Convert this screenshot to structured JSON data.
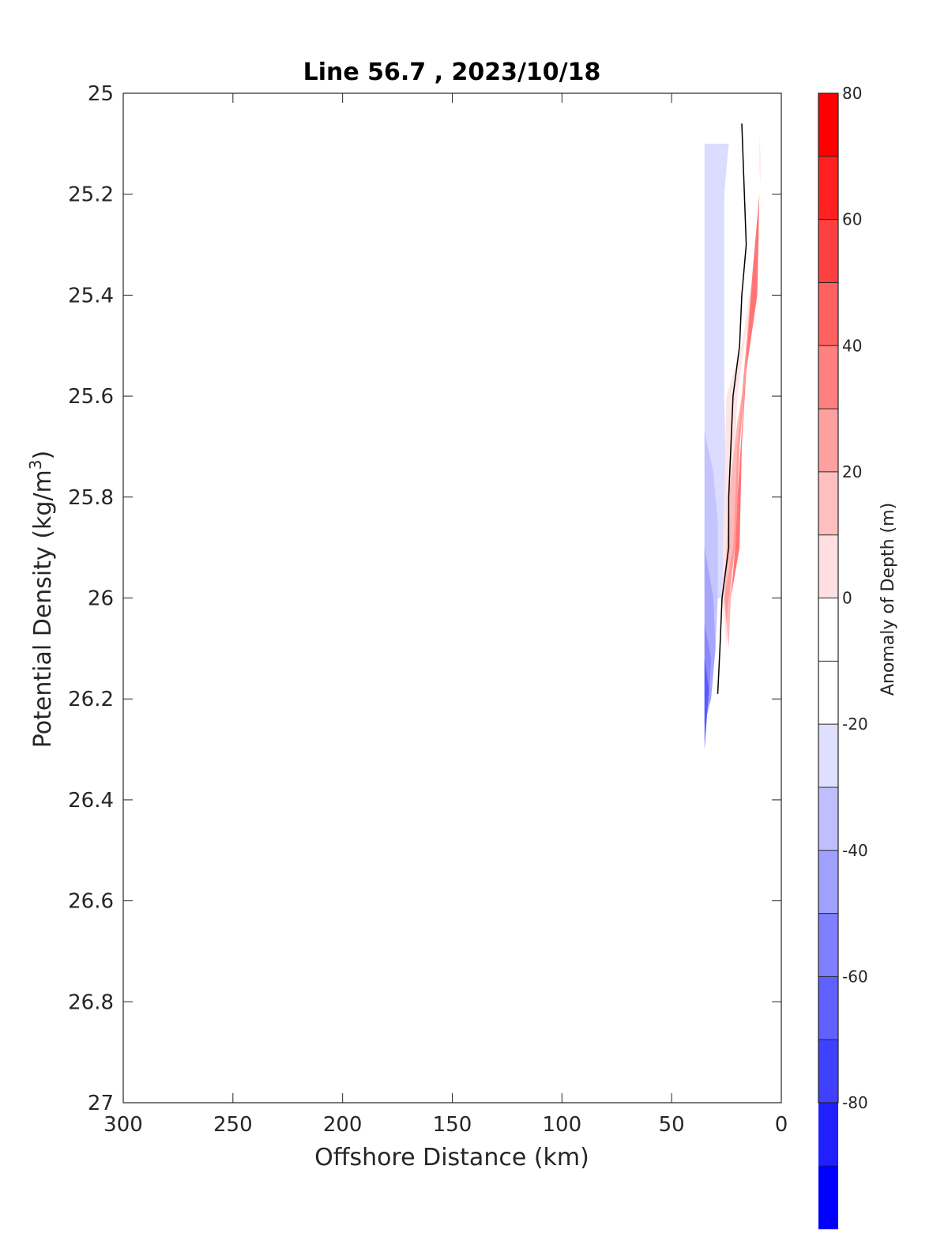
{
  "chart_data": {
    "type": "contour",
    "title": "Line 56.7 , 2023/10/18",
    "xlabel": "Offshore Distance (km)",
    "ylabel_main": "Potential Density (kg/m",
    "ylabel_sup": "3",
    "ylabel_end": ")",
    "xlim": [
      300,
      0
    ],
    "ylim": [
      25,
      27
    ],
    "x_reversed": true,
    "y_reversed": true,
    "x_ticks": [
      "300",
      "250",
      "200",
      "150",
      "100",
      "50",
      "0"
    ],
    "y_ticks": [
      "25",
      "25.2",
      "25.4",
      "25.6",
      "25.8",
      "26",
      "26.2",
      "26.4",
      "26.6",
      "26.8",
      "27"
    ],
    "grid": false,
    "colorbar": {
      "label": "Anomaly of Depth (m)",
      "range": [
        -80,
        80
      ],
      "step": 10,
      "ticks": [
        "80",
        "60",
        "40",
        "20",
        "0",
        "-20",
        "-40",
        "-60",
        "-80"
      ],
      "colors_top_to_bottom": [
        "#ff0000",
        "#ff2020",
        "#ff4040",
        "#ff6060",
        "#ff8080",
        "#ffa0a0",
        "#ffbfbf",
        "#ffdfdf",
        "#ffffff",
        "#ffffff",
        "#dfdfff",
        "#bfbfff",
        "#a0a0ff",
        "#8080ff",
        "#6060ff",
        "#4040ff",
        "#2020ff",
        "#0000ff"
      ]
    },
    "regions": [
      {
        "level": -15,
        "color": "#dcdcff",
        "points": [
          [
            35,
            25.1
          ],
          [
            24,
            25.1
          ],
          [
            26,
            25.2
          ],
          [
            26,
            25.6
          ],
          [
            25,
            25.8
          ],
          [
            26,
            26.0
          ],
          [
            35,
            26.0
          ]
        ]
      },
      {
        "level": -25,
        "color": "#c4c4ff",
        "points": [
          [
            35,
            25.67
          ],
          [
            31,
            25.75
          ],
          [
            29,
            25.85
          ],
          [
            29,
            26.0
          ],
          [
            30,
            26.1
          ],
          [
            35,
            26.2
          ]
        ]
      },
      {
        "level": -35,
        "color": "#a6a6ff",
        "points": [
          [
            35,
            25.9
          ],
          [
            31,
            26.0
          ],
          [
            30,
            26.1
          ],
          [
            32,
            26.2
          ],
          [
            35,
            26.25
          ]
        ]
      },
      {
        "level": -45,
        "color": "#8888ff",
        "points": [
          [
            35,
            26.05
          ],
          [
            32,
            26.12
          ],
          [
            33,
            26.2
          ],
          [
            35,
            26.25
          ]
        ]
      },
      {
        "level": -55,
        "color": "#5a5aff",
        "points": [
          [
            35,
            26.12
          ],
          [
            33,
            26.18
          ],
          [
            35,
            26.3
          ]
        ]
      },
      {
        "level": 15,
        "color": "#ffe4e4",
        "points": [
          [
            11,
            25.28
          ],
          [
            13,
            25.4
          ],
          [
            17,
            25.5
          ],
          [
            20,
            25.6
          ],
          [
            22,
            25.8
          ],
          [
            24,
            26.0
          ],
          [
            25,
            26.1
          ],
          [
            27,
            26.0
          ],
          [
            26,
            25.8
          ],
          [
            25,
            25.6
          ],
          [
            18,
            25.5
          ],
          [
            11,
            25.3
          ]
        ]
      },
      {
        "level": 25,
        "color": "#ffb8b8",
        "points": [
          [
            10,
            25.25
          ],
          [
            12,
            25.4
          ],
          [
            16,
            25.55
          ],
          [
            19,
            25.65
          ],
          [
            21,
            25.8
          ],
          [
            23,
            26.0
          ],
          [
            24,
            26.1
          ],
          [
            26,
            26.0
          ],
          [
            24,
            25.8
          ],
          [
            20,
            25.65
          ],
          [
            16,
            25.55
          ],
          [
            11,
            25.4
          ]
        ]
      },
      {
        "level": 35,
        "color": "#ff9a9a",
        "points": [
          [
            12,
            25.3
          ],
          [
            15,
            25.5
          ],
          [
            19,
            25.7
          ],
          [
            21,
            25.9
          ],
          [
            24,
            26.0
          ],
          [
            25,
            26.05
          ],
          [
            26,
            26.0
          ],
          [
            22,
            25.9
          ],
          [
            20,
            25.7
          ],
          [
            16,
            25.5
          ]
        ]
      },
      {
        "level": 45,
        "color": "#ff7575",
        "points": [
          [
            10,
            25.2
          ],
          [
            13,
            25.35
          ],
          [
            17,
            25.6
          ],
          [
            20,
            25.8
          ],
          [
            21,
            25.9
          ],
          [
            23,
            26.0
          ],
          [
            19,
            25.9
          ],
          [
            18,
            25.7
          ],
          [
            16,
            25.55
          ],
          [
            11,
            25.4
          ]
        ]
      },
      {
        "level": 15,
        "color": "#ffe4e4",
        "points": [
          [
            10,
            25.08
          ],
          [
            9.5,
            25.12
          ],
          [
            9.5,
            25.18
          ],
          [
            10,
            25.15
          ]
        ]
      }
    ],
    "zero_contour": [
      [
        18,
        25.06
      ],
      [
        16,
        25.3
      ],
      [
        18,
        25.4
      ],
      [
        19,
        25.5
      ],
      [
        22,
        25.6
      ],
      [
        24,
        25.8
      ],
      [
        24,
        25.9
      ],
      [
        27,
        26.0
      ],
      [
        28,
        26.1
      ],
      [
        29,
        26.19
      ]
    ]
  }
}
